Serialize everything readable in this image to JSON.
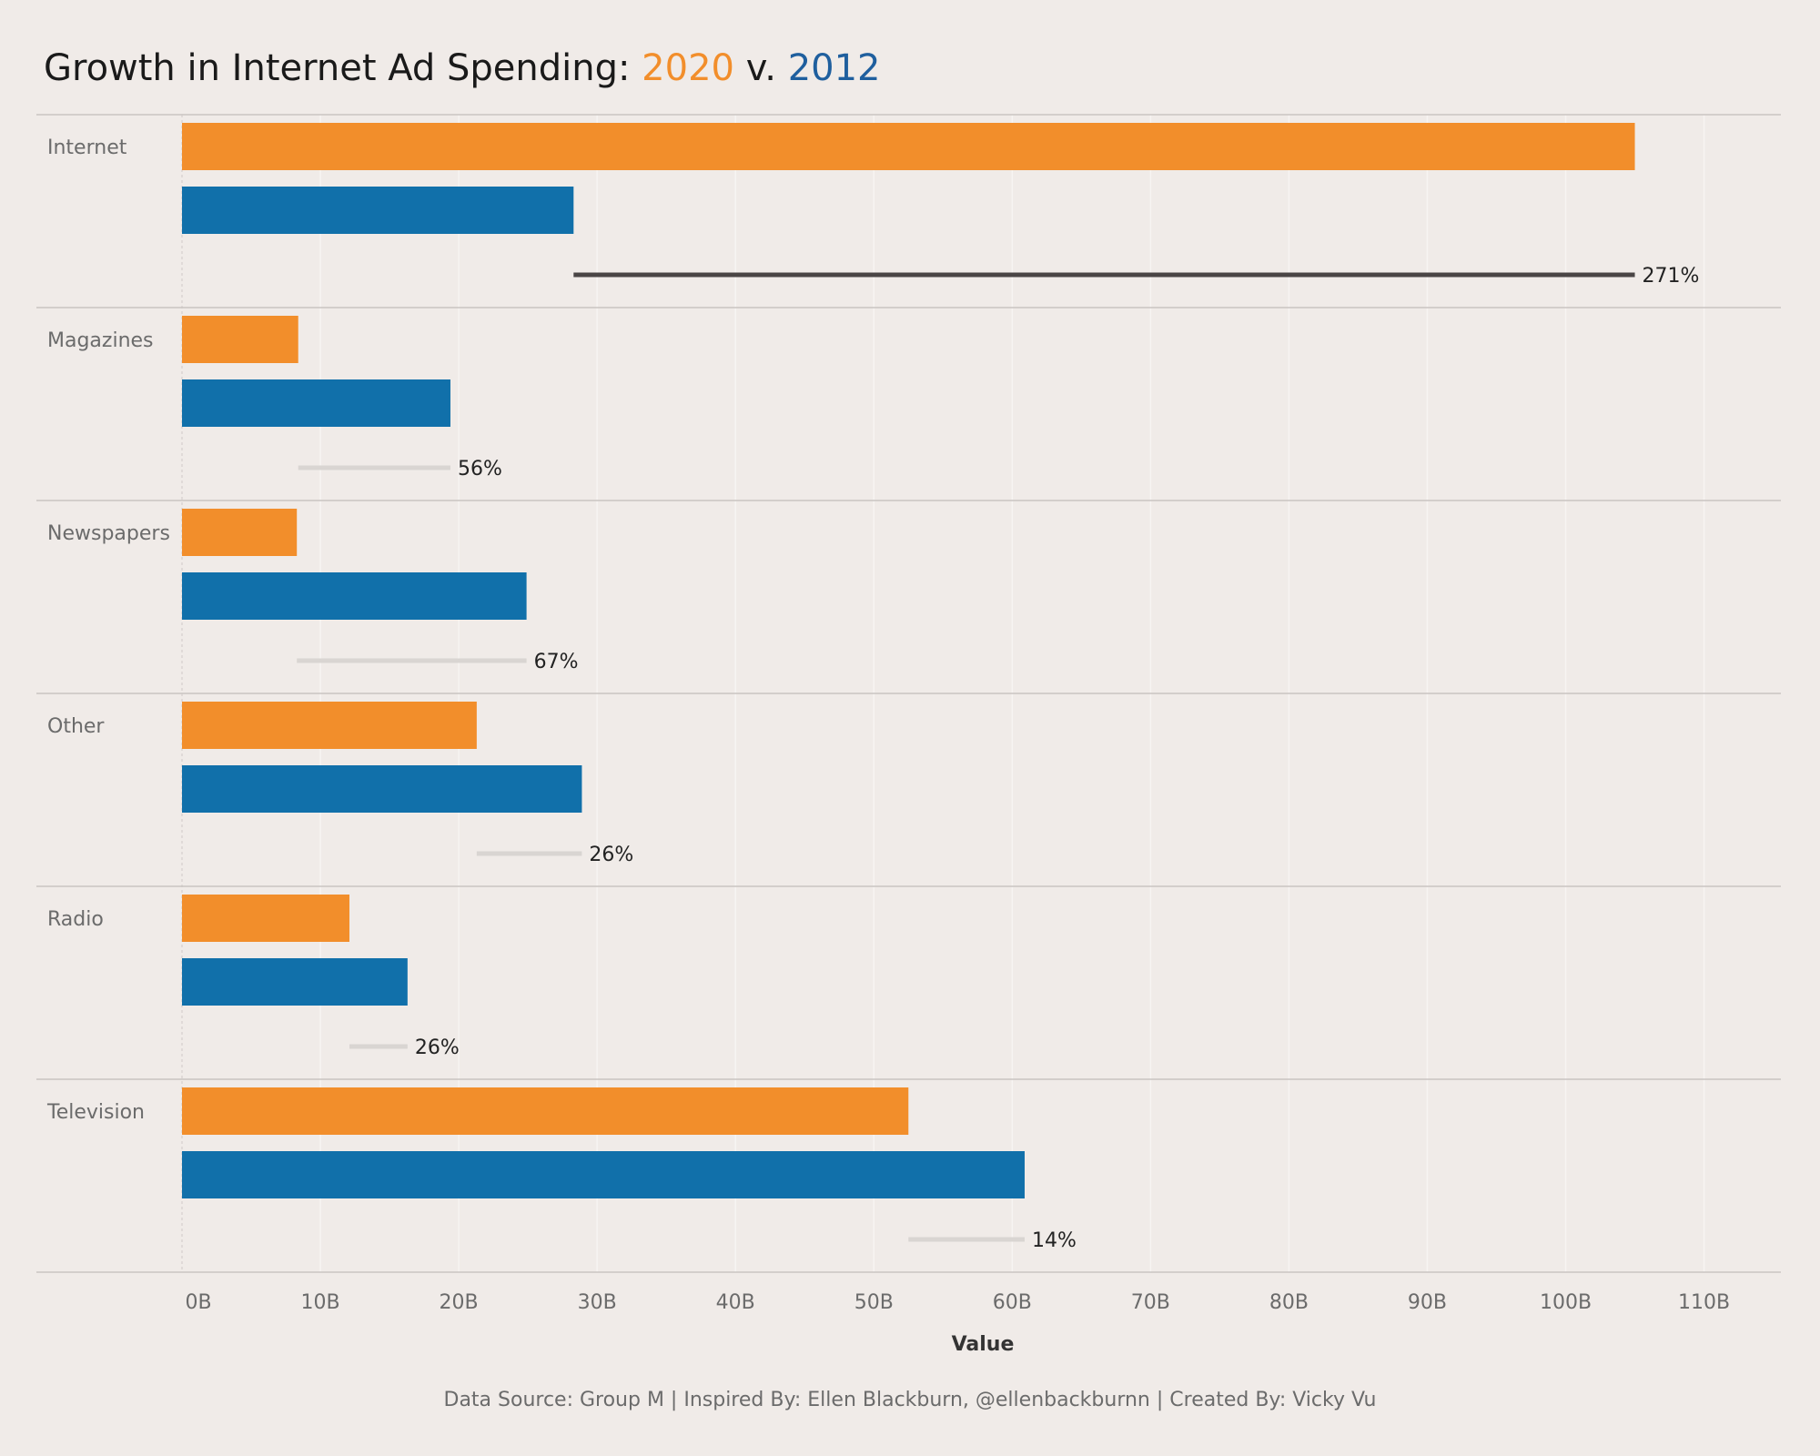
{
  "title": {
    "prefix": "Growth in Internet Ad Spending:",
    "year_a": "2020",
    "connector": "v.",
    "year_b": "2012"
  },
  "footer": "Data Source: Group M | Inspired By: Ellen Blackburn, @ellenbackburnn | Created By: Vicky Vu",
  "colors": {
    "y2020": "#f28e2b",
    "y2012": "#1170aa",
    "highlight_line": "#4a4545",
    "other_line": "#d9d5d2",
    "background": "#f0ebe8"
  },
  "chart_data": {
    "type": "bar",
    "orientation": "horizontal",
    "categories": [
      "Internet",
      "Magazines",
      "Newspapers",
      "Other",
      "Radio",
      "Television"
    ],
    "series": [
      {
        "name": "2020",
        "values": [
          105.0,
          8.4,
          8.3,
          21.3,
          12.1,
          52.5
        ]
      },
      {
        "name": "2012",
        "values": [
          28.3,
          19.4,
          24.9,
          28.9,
          16.3,
          60.9
        ]
      }
    ],
    "growth_labels": [
      "271%",
      "56%",
      "67%",
      "26%",
      "26%",
      "14%"
    ],
    "highlight_category": "Internet",
    "xlabel": "Value",
    "xlim": [
      0,
      115
    ],
    "x_ticks": [
      {
        "value": 0,
        "label": "0B"
      },
      {
        "value": 10,
        "label": "10B"
      },
      {
        "value": 20,
        "label": "20B"
      },
      {
        "value": 30,
        "label": "30B"
      },
      {
        "value": 40,
        "label": "40B"
      },
      {
        "value": 50,
        "label": "50B"
      },
      {
        "value": 60,
        "label": "60B"
      },
      {
        "value": 70,
        "label": "70B"
      },
      {
        "value": 80,
        "label": "80B"
      },
      {
        "value": 90,
        "label": "90B"
      },
      {
        "value": 100,
        "label": "100B"
      },
      {
        "value": 110,
        "label": "110B"
      }
    ],
    "grid": true
  }
}
